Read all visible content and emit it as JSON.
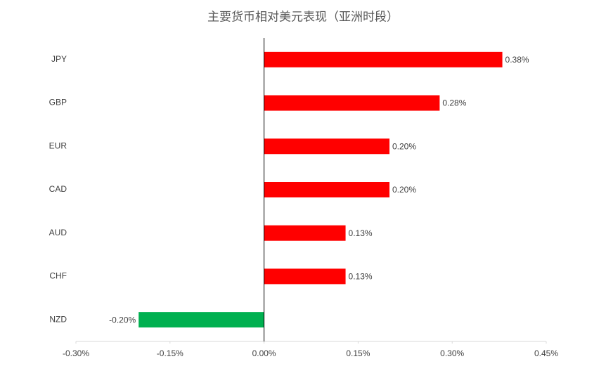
{
  "chart_data": {
    "type": "bar",
    "orientation": "horizontal",
    "title": "主要货币相对美元表现（亚洲时段）",
    "categories": [
      "JPY",
      "GBP",
      "EUR",
      "CAD",
      "AUD",
      "CHF",
      "NZD"
    ],
    "values": [
      0.38,
      0.28,
      0.2,
      0.2,
      0.13,
      0.13,
      -0.2
    ],
    "value_labels": [
      "0.38%",
      "0.28%",
      "0.20%",
      "0.20%",
      "0.13%",
      "0.13%",
      "-0.20%"
    ],
    "colors": [
      "#ff0000",
      "#ff0000",
      "#ff0000",
      "#ff0000",
      "#ff0000",
      "#ff0000",
      "#00b050"
    ],
    "xlim": [
      -0.3,
      0.45
    ],
    "xticks": [
      {
        "value": -0.3,
        "label": "-0.30%"
      },
      {
        "value": -0.15,
        "label": "-0.15%"
      },
      {
        "value": 0,
        "label": "0.00%"
      },
      {
        "value": 0.15,
        "label": "0.15%"
      },
      {
        "value": 0.3,
        "label": "0.30%"
      },
      {
        "value": 0.45,
        "label": "0.45%"
      }
    ],
    "grid": false
  }
}
